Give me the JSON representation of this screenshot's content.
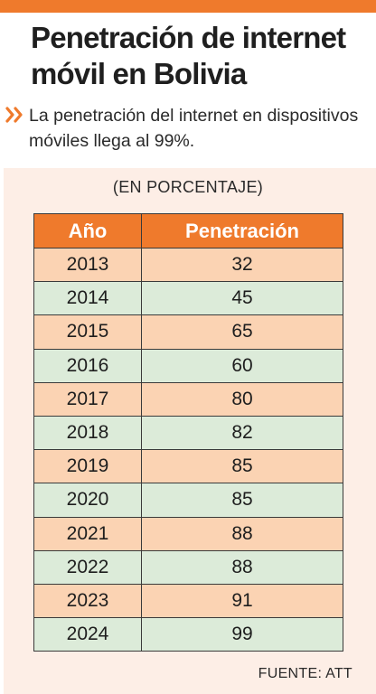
{
  "title": "Penetración de internet móvil en Bolivia",
  "subtitle": "La penetración del internet en dispositivos móviles llega al 99%.",
  "icons": {
    "bullet": "double-chevron-right-icon"
  },
  "colors": {
    "accent": "#ef7a2c",
    "panel_background": "#fdeee6",
    "row_orange": "#fbd3b3",
    "row_green": "#dcebd9"
  },
  "chart_data": {
    "type": "table",
    "unit_label": "(EN PORCENTAJE)",
    "columns": [
      "Año",
      "Penetración"
    ],
    "rows": [
      [
        "2013",
        "32"
      ],
      [
        "2014",
        "45"
      ],
      [
        "2015",
        "65"
      ],
      [
        "2016",
        "60"
      ],
      [
        "2017",
        "80"
      ],
      [
        "2018",
        "82"
      ],
      [
        "2019",
        "85"
      ],
      [
        "2020",
        "85"
      ],
      [
        "2021",
        "88"
      ],
      [
        "2022",
        "88"
      ],
      [
        "2023",
        "91"
      ],
      [
        "2024",
        "99"
      ]
    ]
  },
  "source": "FUENTE: ATT"
}
